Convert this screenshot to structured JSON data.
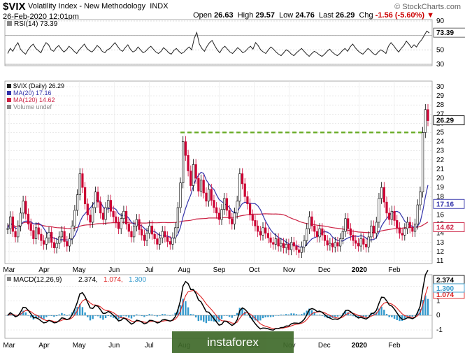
{
  "header": {
    "symbol": "$VIX",
    "description": "Volatility Index - New Methodology",
    "exchange": "INDX",
    "datetime": "26-Feb-2020 12:01pm",
    "open_label": "Open",
    "open": "26.63",
    "high_label": "High",
    "high": "29.57",
    "low_label": "Low",
    "low": "24.76",
    "last_label": "Last",
    "last": "26.29",
    "chg_label": "Chg",
    "chg": "-1.56 (-5.60%)",
    "watermark": "© StockCharts.com"
  },
  "colors": {
    "up_candle": "#000000",
    "down_candle": "#cc0033",
    "ma20": "#3333aa",
    "ma120": "#cc2244",
    "resistance": "#66aa22",
    "macd_line": "#000000",
    "signal_line": "#dd2222",
    "histogram": "#3399cc"
  },
  "chart_data": [
    {
      "type": "line",
      "legend": "RSI(14) 73.39",
      "last_value": "73.39",
      "ylim": [
        30,
        90
      ],
      "ticks": [
        "90",
        "70",
        "50",
        "30"
      ],
      "overbought": 70,
      "oversold": 30,
      "values": [
        45,
        52,
        48,
        55,
        60,
        51,
        47,
        44,
        50,
        55,
        58,
        52,
        49,
        46,
        54,
        60,
        57,
        50,
        48,
        53,
        56,
        51,
        47,
        50,
        55,
        52,
        48,
        45,
        50,
        54,
        58,
        52,
        49,
        47,
        51,
        56,
        53,
        48,
        46,
        50,
        52,
        56,
        60,
        55,
        50,
        48,
        53,
        57,
        51,
        47,
        49,
        54,
        50,
        46,
        48,
        52,
        55,
        51,
        47,
        45,
        48,
        53,
        50,
        46,
        44,
        49,
        52,
        48,
        45,
        47,
        51,
        54,
        50,
        66,
        74,
        58,
        52,
        48,
        55,
        60,
        63,
        56,
        50,
        46,
        52,
        55,
        51,
        47,
        45,
        49,
        53,
        50,
        46,
        48,
        52,
        55,
        51,
        60,
        56,
        50,
        47,
        45,
        50,
        54,
        51,
        47,
        44,
        42,
        46,
        50,
        48,
        44,
        42,
        46,
        49,
        52,
        48,
        44,
        41,
        45,
        48,
        46,
        43,
        41,
        44,
        48,
        51,
        47,
        44,
        42,
        45,
        49,
        52,
        48,
        54,
        58,
        53,
        49,
        46,
        44,
        48,
        52,
        49,
        45,
        43,
        47,
        50,
        48,
        45,
        55,
        60,
        56,
        51,
        47,
        52,
        56,
        62,
        58,
        53,
        57,
        54,
        60,
        64,
        70,
        76,
        73.39
      ]
    },
    {
      "type": "line",
      "title": "$VIX (Daily) 26.29",
      "legend": [
        {
          "name": "$VIX (Daily)",
          "value": "26.29"
        },
        {
          "name": "MA(20)",
          "value": "17.16"
        },
        {
          "name": "MA(120)",
          "value": "14.62"
        },
        {
          "name": "Volume undef",
          "value": ""
        }
      ],
      "ylim": [
        11,
        30
      ],
      "yticks": [
        "30",
        "29",
        "28",
        "27",
        "26",
        "25",
        "24",
        "23",
        "22",
        "21",
        "20",
        "19",
        "18",
        "17",
        "16",
        "15",
        "14",
        "13",
        "12",
        "11"
      ],
      "xticks": [
        "Mar",
        "Apr",
        "May",
        "Jun",
        "Jul",
        "Aug",
        "Sep",
        "Oct",
        "Nov",
        "Dec",
        "2020",
        "Feb"
      ],
      "price_badges": [
        "26.29",
        "17.16",
        "14.62"
      ],
      "resistance": 25,
      "close": [
        14.5,
        15.8,
        14.2,
        13.6,
        14.8,
        16.2,
        17.5,
        16.1,
        15.0,
        14.3,
        13.4,
        14.6,
        13.9,
        13.2,
        12.8,
        13.5,
        14.1,
        13.0,
        12.4,
        12.9,
        13.6,
        14.2,
        13.1,
        12.6,
        13.4,
        14.8,
        16.5,
        18.2,
        20.5,
        19.0,
        17.2,
        16.0,
        15.2,
        16.8,
        18.5,
        17.4,
        16.2,
        15.5,
        16.8,
        17.6,
        16.4,
        15.8,
        15.2,
        14.5,
        15.6,
        16.4,
        15.0,
        14.2,
        13.6,
        14.8,
        15.5,
        14.4,
        13.8,
        13.2,
        14.0,
        14.8,
        13.9,
        13.4,
        12.8,
        13.5,
        14.2,
        13.6,
        13.1,
        12.8,
        13.5,
        14.6,
        16.8,
        19.5,
        24.0,
        22.5,
        20.8,
        19.2,
        21.5,
        20.0,
        18.6,
        19.8,
        18.4,
        17.5,
        18.8,
        17.6,
        16.8,
        16.2,
        15.5,
        16.6,
        17.8,
        16.5,
        15.6,
        15.0,
        16.2,
        17.5,
        20.5,
        19.4,
        18.0,
        17.2,
        16.0,
        15.4,
        14.8,
        14.2,
        13.8,
        14.6,
        14.0,
        13.5,
        13.0,
        12.8,
        13.4,
        12.6,
        12.9,
        12.4,
        12.8,
        12.2,
        13.0,
        12.6,
        12.2,
        11.9,
        12.5,
        13.2,
        14.5,
        15.8,
        14.8,
        14.2,
        13.6,
        14.5,
        13.8,
        13.2,
        12.7,
        12.9,
        12.5,
        13.0,
        12.6,
        13.4,
        14.2,
        15.6,
        14.5,
        13.8,
        13.2,
        12.9,
        12.6,
        13.4,
        12.8,
        12.5,
        13.6,
        14.8,
        14.0,
        15.2,
        17.8,
        19.0,
        17.4,
        16.2,
        15.5,
        16.4,
        15.4,
        14.6,
        14.0,
        13.8,
        14.5,
        15.2,
        14.6,
        14.2,
        15.0,
        17.1,
        18.5,
        25.0,
        27.5,
        26.29
      ],
      "ma20_last": 17.16,
      "ma120_last": 14.62
    },
    {
      "type": "line",
      "title": "MACD(12,26,9)",
      "legend": [
        {
          "name": "MACD(12,26,9)",
          "value": "2.374"
        },
        {
          "name": "",
          "value": "1.074"
        },
        {
          "name": "",
          "value": "1.300"
        }
      ],
      "ylim": [
        -1,
        2.5
      ],
      "yticks": [
        "2",
        "1",
        "0",
        "-1"
      ],
      "xticks": [
        "Mar",
        "Apr",
        "May",
        "Jun",
        "Jul",
        "Aug",
        "Sep",
        "Oct",
        "Nov",
        "Dec",
        "2020",
        "Feb"
      ],
      "price_badges": [
        "2.374",
        "1.074",
        "1.300"
      ]
    }
  ],
  "logo_text": "instaforex"
}
